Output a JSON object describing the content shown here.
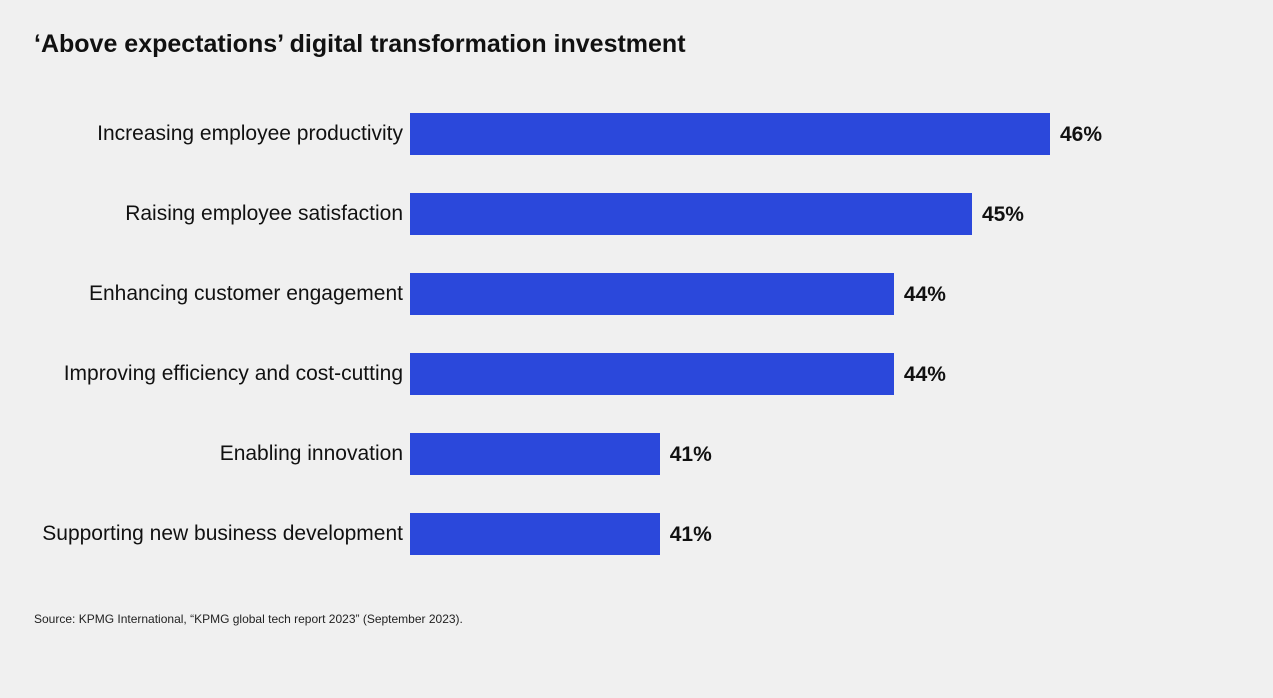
{
  "chart_data": {
    "type": "bar",
    "orientation": "horizontal",
    "title": "‘Above expectations’ digital transformation investment",
    "categories": [
      "Increasing employee productivity",
      "Raising employee satisfaction",
      "Enhancing customer engagement",
      "Improving efficiency and cost-cutting",
      "Enabling innovation",
      "Supporting new business development"
    ],
    "values": [
      46,
      45,
      44,
      44,
      41,
      41
    ],
    "data_labels": [
      "46%",
      "45%",
      "44%",
      "44%",
      "41%",
      "41%"
    ],
    "unit": "%",
    "xlabel": "",
    "ylabel": "",
    "grid": false,
    "bar_color": "#2b48db"
  },
  "source": "Source: KPMG International, “KPMG global tech report 2023” (September 2023)."
}
